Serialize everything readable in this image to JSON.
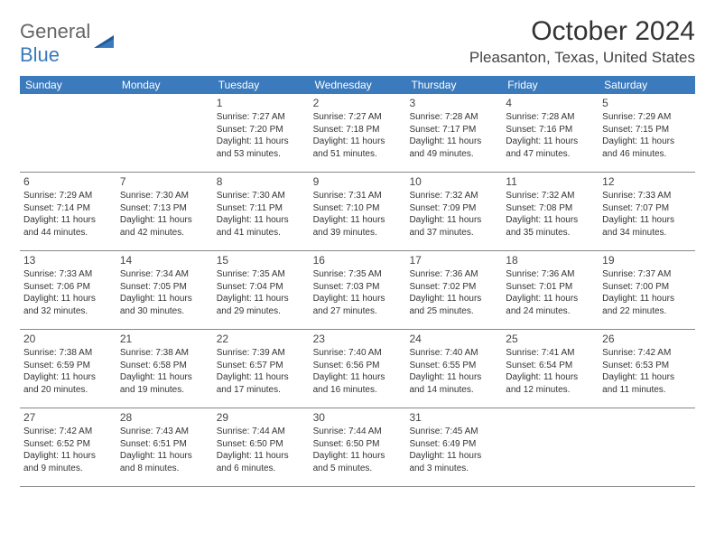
{
  "brand": {
    "line1": "General",
    "line2": "Blue"
  },
  "title": "October 2024",
  "location": "Pleasanton, Texas, United States",
  "colors": {
    "header_bg": "#3a7abd",
    "header_text": "#ffffff",
    "body_text": "#333333",
    "row_border": "#888888",
    "logo_gray": "#666666",
    "logo_blue": "#3a7abd"
  },
  "typography": {
    "title_fontsize": 30,
    "location_fontsize": 17,
    "header_fontsize": 12,
    "daynum_fontsize": 12,
    "detail_fontsize": 10
  },
  "day_labels": [
    "Sunday",
    "Monday",
    "Tuesday",
    "Wednesday",
    "Thursday",
    "Friday",
    "Saturday"
  ],
  "weeks": [
    [
      null,
      null,
      {
        "n": "1",
        "sr": "Sunrise: 7:27 AM",
        "ss": "Sunset: 7:20 PM",
        "dl": "Daylight: 11 hours and 53 minutes."
      },
      {
        "n": "2",
        "sr": "Sunrise: 7:27 AM",
        "ss": "Sunset: 7:18 PM",
        "dl": "Daylight: 11 hours and 51 minutes."
      },
      {
        "n": "3",
        "sr": "Sunrise: 7:28 AM",
        "ss": "Sunset: 7:17 PM",
        "dl": "Daylight: 11 hours and 49 minutes."
      },
      {
        "n": "4",
        "sr": "Sunrise: 7:28 AM",
        "ss": "Sunset: 7:16 PM",
        "dl": "Daylight: 11 hours and 47 minutes."
      },
      {
        "n": "5",
        "sr": "Sunrise: 7:29 AM",
        "ss": "Sunset: 7:15 PM",
        "dl": "Daylight: 11 hours and 46 minutes."
      }
    ],
    [
      {
        "n": "6",
        "sr": "Sunrise: 7:29 AM",
        "ss": "Sunset: 7:14 PM",
        "dl": "Daylight: 11 hours and 44 minutes."
      },
      {
        "n": "7",
        "sr": "Sunrise: 7:30 AM",
        "ss": "Sunset: 7:13 PM",
        "dl": "Daylight: 11 hours and 42 minutes."
      },
      {
        "n": "8",
        "sr": "Sunrise: 7:30 AM",
        "ss": "Sunset: 7:11 PM",
        "dl": "Daylight: 11 hours and 41 minutes."
      },
      {
        "n": "9",
        "sr": "Sunrise: 7:31 AM",
        "ss": "Sunset: 7:10 PM",
        "dl": "Daylight: 11 hours and 39 minutes."
      },
      {
        "n": "10",
        "sr": "Sunrise: 7:32 AM",
        "ss": "Sunset: 7:09 PM",
        "dl": "Daylight: 11 hours and 37 minutes."
      },
      {
        "n": "11",
        "sr": "Sunrise: 7:32 AM",
        "ss": "Sunset: 7:08 PM",
        "dl": "Daylight: 11 hours and 35 minutes."
      },
      {
        "n": "12",
        "sr": "Sunrise: 7:33 AM",
        "ss": "Sunset: 7:07 PM",
        "dl": "Daylight: 11 hours and 34 minutes."
      }
    ],
    [
      {
        "n": "13",
        "sr": "Sunrise: 7:33 AM",
        "ss": "Sunset: 7:06 PM",
        "dl": "Daylight: 11 hours and 32 minutes."
      },
      {
        "n": "14",
        "sr": "Sunrise: 7:34 AM",
        "ss": "Sunset: 7:05 PM",
        "dl": "Daylight: 11 hours and 30 minutes."
      },
      {
        "n": "15",
        "sr": "Sunrise: 7:35 AM",
        "ss": "Sunset: 7:04 PM",
        "dl": "Daylight: 11 hours and 29 minutes."
      },
      {
        "n": "16",
        "sr": "Sunrise: 7:35 AM",
        "ss": "Sunset: 7:03 PM",
        "dl": "Daylight: 11 hours and 27 minutes."
      },
      {
        "n": "17",
        "sr": "Sunrise: 7:36 AM",
        "ss": "Sunset: 7:02 PM",
        "dl": "Daylight: 11 hours and 25 minutes."
      },
      {
        "n": "18",
        "sr": "Sunrise: 7:36 AM",
        "ss": "Sunset: 7:01 PM",
        "dl": "Daylight: 11 hours and 24 minutes."
      },
      {
        "n": "19",
        "sr": "Sunrise: 7:37 AM",
        "ss": "Sunset: 7:00 PM",
        "dl": "Daylight: 11 hours and 22 minutes."
      }
    ],
    [
      {
        "n": "20",
        "sr": "Sunrise: 7:38 AM",
        "ss": "Sunset: 6:59 PM",
        "dl": "Daylight: 11 hours and 20 minutes."
      },
      {
        "n": "21",
        "sr": "Sunrise: 7:38 AM",
        "ss": "Sunset: 6:58 PM",
        "dl": "Daylight: 11 hours and 19 minutes."
      },
      {
        "n": "22",
        "sr": "Sunrise: 7:39 AM",
        "ss": "Sunset: 6:57 PM",
        "dl": "Daylight: 11 hours and 17 minutes."
      },
      {
        "n": "23",
        "sr": "Sunrise: 7:40 AM",
        "ss": "Sunset: 6:56 PM",
        "dl": "Daylight: 11 hours and 16 minutes."
      },
      {
        "n": "24",
        "sr": "Sunrise: 7:40 AM",
        "ss": "Sunset: 6:55 PM",
        "dl": "Daylight: 11 hours and 14 minutes."
      },
      {
        "n": "25",
        "sr": "Sunrise: 7:41 AM",
        "ss": "Sunset: 6:54 PM",
        "dl": "Daylight: 11 hours and 12 minutes."
      },
      {
        "n": "26",
        "sr": "Sunrise: 7:42 AM",
        "ss": "Sunset: 6:53 PM",
        "dl": "Daylight: 11 hours and 11 minutes."
      }
    ],
    [
      {
        "n": "27",
        "sr": "Sunrise: 7:42 AM",
        "ss": "Sunset: 6:52 PM",
        "dl": "Daylight: 11 hours and 9 minutes."
      },
      {
        "n": "28",
        "sr": "Sunrise: 7:43 AM",
        "ss": "Sunset: 6:51 PM",
        "dl": "Daylight: 11 hours and 8 minutes."
      },
      {
        "n": "29",
        "sr": "Sunrise: 7:44 AM",
        "ss": "Sunset: 6:50 PM",
        "dl": "Daylight: 11 hours and 6 minutes."
      },
      {
        "n": "30",
        "sr": "Sunrise: 7:44 AM",
        "ss": "Sunset: 6:50 PM",
        "dl": "Daylight: 11 hours and 5 minutes."
      },
      {
        "n": "31",
        "sr": "Sunrise: 7:45 AM",
        "ss": "Sunset: 6:49 PM",
        "dl": "Daylight: 11 hours and 3 minutes."
      },
      null,
      null
    ]
  ]
}
